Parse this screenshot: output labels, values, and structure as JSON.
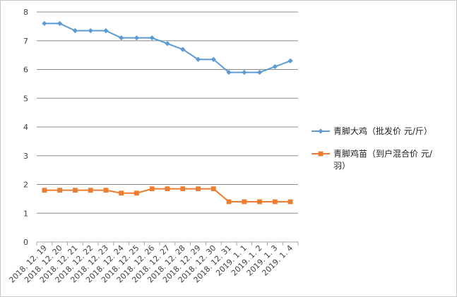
{
  "chart_data": {
    "type": "line",
    "categories": [
      "2018.12.19",
      "2018.12.20",
      "2018.12.21",
      "2018.12.22",
      "2018.12.23",
      "2018.12.24",
      "2018.12.25",
      "2018.12.26",
      "2018.12.27",
      "2018.12.28",
      "2018.12.29",
      "2018.12.30",
      "2018.12.31",
      "2019.1.1",
      "2019.1.2",
      "2019.1.3",
      "2019.1.4"
    ],
    "category_labels": [
      "2018. 12. 19",
      "2018. 12. 20",
      "2018. 12. 21",
      "2018. 12. 22",
      "2018. 12. 23",
      "2018. 12. 24",
      "2018. 12. 25",
      "2018. 12. 26",
      "2018. 12. 27",
      "2018. 12. 28",
      "2018. 12. 29",
      "2018. 12. 30",
      "2018. 12. 31",
      "2019. 1. 1",
      "2019. 1. 2",
      "2019. 1. 3",
      "2019. 1. 4"
    ],
    "series": [
      {
        "name": "青脚大鸡（批发价  元/斤）",
        "legend_lines": [
          "青脚大鸡（批发价  元/斤）"
        ],
        "color": "#5b9bd5",
        "marker": "diamond",
        "values": [
          7.6,
          7.6,
          7.35,
          7.35,
          7.35,
          7.1,
          7.1,
          7.1,
          6.9,
          6.7,
          6.35,
          6.35,
          5.9,
          5.9,
          5.9,
          6.1,
          6.3
        ]
      },
      {
        "name": "青脚鸡苗（到户混合价  元/羽）",
        "legend_lines": [
          "青脚鸡苗（到户混合价  元/",
          "羽）"
        ],
        "color": "#ed7d31",
        "marker": "square",
        "values": [
          1.8,
          1.8,
          1.8,
          1.8,
          1.8,
          1.7,
          1.7,
          1.85,
          1.85,
          1.85,
          1.85,
          1.85,
          1.4,
          1.4,
          1.4,
          1.4,
          1.4
        ]
      }
    ],
    "ylim": [
      0,
      8
    ],
    "yticks": [
      "0",
      "1",
      "2",
      "3",
      "4",
      "5",
      "6",
      "7",
      "8"
    ],
    "grid": true,
    "legend_position": "right",
    "title": "",
    "xlabel": "",
    "ylabel": ""
  }
}
